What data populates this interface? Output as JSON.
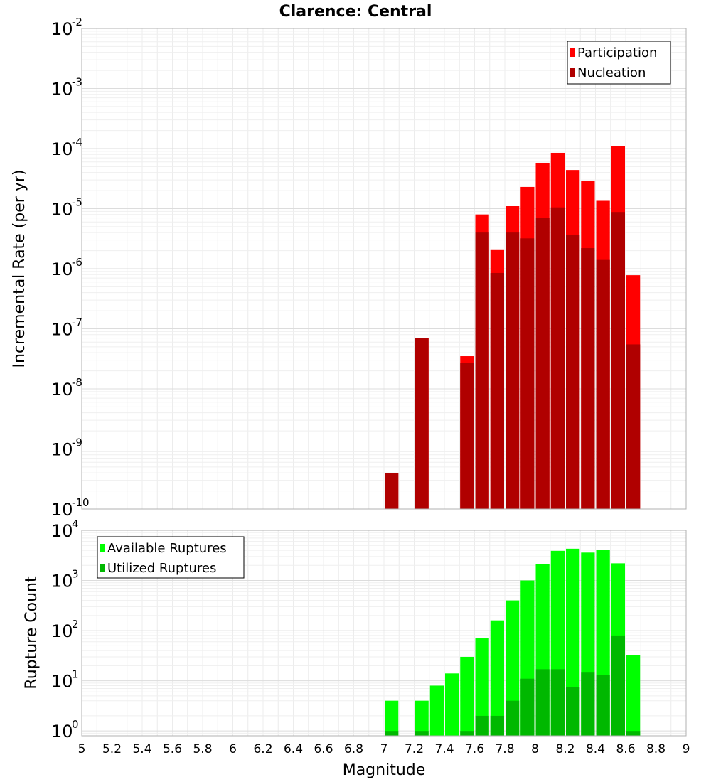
{
  "title": "Clarence: Central",
  "xlabel": "Magnitude",
  "chart_data": [
    {
      "type": "bar",
      "title": "Clarence: Central",
      "xlabel": "Magnitude",
      "ylabel": "Incremental Rate (per yr)",
      "yscale": "log",
      "xlim": [
        5,
        9
      ],
      "ylim": [
        1e-10,
        0.01
      ],
      "grid": true,
      "legend_position": "top-right",
      "bar_width": 0.1,
      "x_ticks": [
        5,
        5.2,
        5.4,
        5.6,
        5.8,
        6,
        6.2,
        6.4,
        6.6,
        6.8,
        7,
        7.2,
        7.4,
        7.6,
        7.8,
        8,
        8.2,
        8.4,
        8.6,
        8.8,
        9
      ],
      "x_tick_labels": [
        "5",
        "5.2",
        "5.4",
        "5.6",
        "5.8",
        "6",
        "6.2",
        "6.4",
        "6.6",
        "6.8",
        "7",
        "7.2",
        "7.4",
        "7.6",
        "7.8",
        "8",
        "8.2",
        "8.4",
        "8.6",
        "8.8",
        "9"
      ],
      "y_tick_exponents": [
        -10,
        -9,
        -8,
        -7,
        -6,
        -5,
        -4,
        -3,
        -2
      ],
      "x": [
        7.05,
        7.25,
        7.55,
        7.65,
        7.75,
        7.85,
        7.95,
        8.05,
        8.15,
        8.25,
        8.35,
        8.45,
        8.55,
        8.65
      ],
      "series": [
        {
          "name": "Participation",
          "color": "#ff0000",
          "values": [
            4e-10,
            7e-08,
            3.5e-08,
            8e-06,
            2.1e-06,
            1.1e-05,
            2.3e-05,
            5.8e-05,
            8.5e-05,
            4.4e-05,
            2.9e-05,
            1.35e-05,
            0.00011,
            7.8e-07
          ]
        },
        {
          "name": "Nucleation",
          "color": "#b00000",
          "values": [
            4e-10,
            7e-08,
            2.7e-08,
            4e-06,
            8.5e-07,
            4e-06,
            3.2e-06,
            7e-06,
            1.05e-05,
            3.7e-06,
            2.2e-06,
            1.4e-06,
            8.8e-06,
            5.5e-08
          ]
        }
      ]
    },
    {
      "type": "bar",
      "title": "",
      "xlabel": "Magnitude",
      "ylabel": "Rupture Count",
      "yscale": "log",
      "xlim": [
        5,
        9
      ],
      "ylim": [
        0.8,
        10000.0
      ],
      "grid": true,
      "legend_position": "top-left",
      "bar_width": 0.1,
      "x_ticks": [
        5,
        5.2,
        5.4,
        5.6,
        5.8,
        6,
        6.2,
        6.4,
        6.6,
        6.8,
        7,
        7.2,
        7.4,
        7.6,
        7.8,
        8,
        8.2,
        8.4,
        8.6,
        8.8,
        9
      ],
      "x_tick_labels": [
        "5",
        "5.2",
        "5.4",
        "5.6",
        "5.8",
        "6",
        "6.2",
        "6.4",
        "6.6",
        "6.8",
        "7",
        "7.2",
        "7.4",
        "7.6",
        "7.8",
        "8",
        "8.2",
        "8.4",
        "8.6",
        "8.8",
        "9"
      ],
      "y_tick_exponents": [
        0,
        1,
        2,
        3,
        4
      ],
      "x": [
        7.05,
        7.25,
        7.35,
        7.45,
        7.55,
        7.65,
        7.75,
        7.85,
        7.95,
        8.05,
        8.15,
        8.25,
        8.35,
        8.45,
        8.55,
        8.65
      ],
      "series": [
        {
          "name": "Available Ruptures",
          "color": "#00ff00",
          "values": [
            4,
            4,
            8,
            14,
            30,
            70,
            160,
            400,
            1000,
            2100,
            3900,
            4300,
            3600,
            4100,
            2200,
            32
          ]
        },
        {
          "name": "Utilized Ruptures",
          "color": "#00b800",
          "values": [
            1,
            1,
            0,
            0,
            1,
            2,
            2,
            4,
            11,
            17,
            17,
            7.5,
            15,
            13,
            80,
            1
          ]
        }
      ]
    }
  ]
}
